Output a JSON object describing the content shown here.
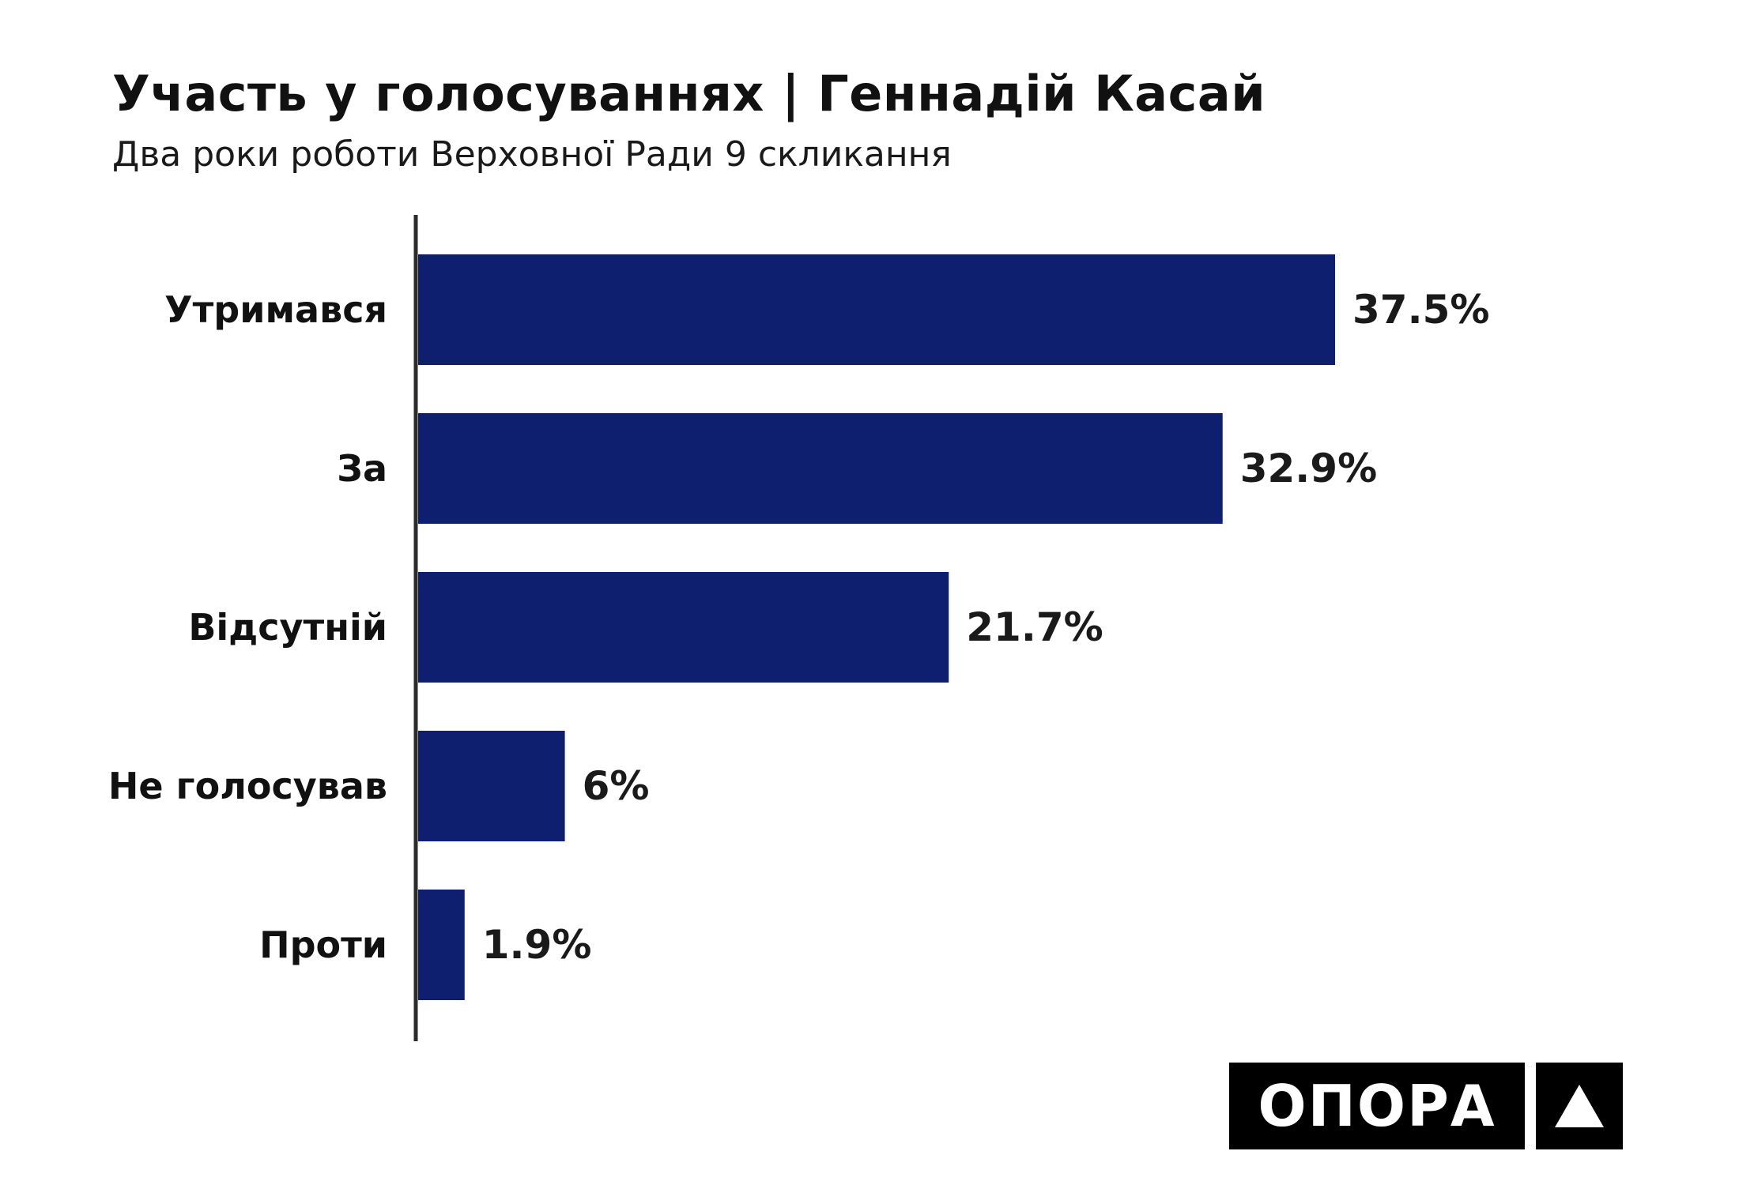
{
  "title": "Участь у голосуваннях | Геннадій Касай",
  "subtitle": "Два роки роботи Верховної Ради 9 скликання",
  "logo": {
    "text": "ОПОРА",
    "icon": "triangle-icon"
  },
  "colors": {
    "bar": "#0f1f70",
    "axis": "#2b2b2b",
    "text": "#1a1a1a"
  },
  "chart_data": {
    "type": "bar",
    "orientation": "horizontal",
    "categories": [
      "Утримався",
      "За",
      "Відсутній",
      "Не голосував",
      "Проти"
    ],
    "values": [
      37.5,
      32.9,
      21.7,
      6,
      1.9
    ],
    "value_labels": [
      "37.5%",
      "32.9%",
      "21.7%",
      "6%",
      "1.9%"
    ],
    "unit": "%",
    "xlim": [
      0,
      37.5
    ],
    "grid": false,
    "legend": "none"
  }
}
